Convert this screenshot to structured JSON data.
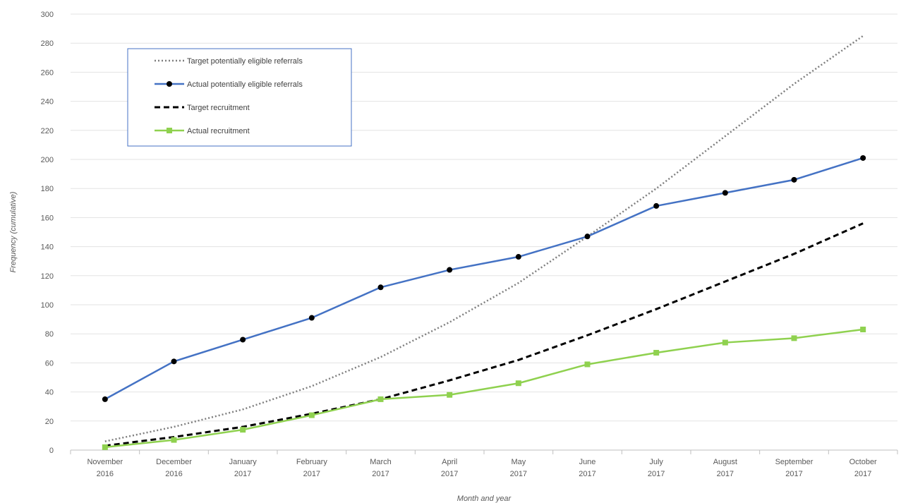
{
  "chart_data": {
    "type": "line",
    "categories": [
      [
        "November",
        "2016"
      ],
      [
        "December",
        "2016"
      ],
      [
        "January",
        "2017"
      ],
      [
        "February",
        "2017"
      ],
      [
        "March",
        "2017"
      ],
      [
        "April",
        "2017"
      ],
      [
        "May",
        "2017"
      ],
      [
        "June",
        "2017"
      ],
      [
        "July",
        "2017"
      ],
      [
        "August",
        "2017"
      ],
      [
        "September",
        "2017"
      ],
      [
        "October",
        "2017"
      ]
    ],
    "xlabel": "Month and year",
    "ylabel": "Frequency (cumulative)",
    "ylim": [
      0,
      300
    ],
    "yticks": [
      0,
      20,
      40,
      60,
      80,
      100,
      120,
      140,
      160,
      180,
      200,
      220,
      240,
      260,
      280,
      300
    ],
    "grid": "horizontal",
    "legend_position": "top-left",
    "series": [
      {
        "name": "Target potentially eligible referrals",
        "style": "dotted",
        "color": "#7f7f7f",
        "marker": "none",
        "values": [
          6,
          16,
          28,
          44,
          64,
          88,
          115,
          147,
          180,
          216,
          252,
          285
        ]
      },
      {
        "name": "Actual potentially eligible referrals",
        "style": "solid",
        "color": "#4472c4",
        "marker": "circle",
        "values": [
          35,
          61,
          76,
          91,
          112,
          124,
          133,
          147,
          168,
          177,
          186,
          201
        ]
      },
      {
        "name": "Target recruitment",
        "style": "dashed",
        "color": "#000000",
        "marker": "none",
        "values": [
          3,
          9,
          16,
          25,
          35,
          48,
          62,
          79,
          97,
          116,
          135,
          156
        ]
      },
      {
        "name": "Actual recruitment",
        "style": "solid",
        "color": "#8fd14f",
        "marker": "square",
        "values": [
          2,
          7,
          14,
          24,
          35,
          38,
          46,
          59,
          67,
          74,
          77,
          83
        ]
      }
    ]
  }
}
